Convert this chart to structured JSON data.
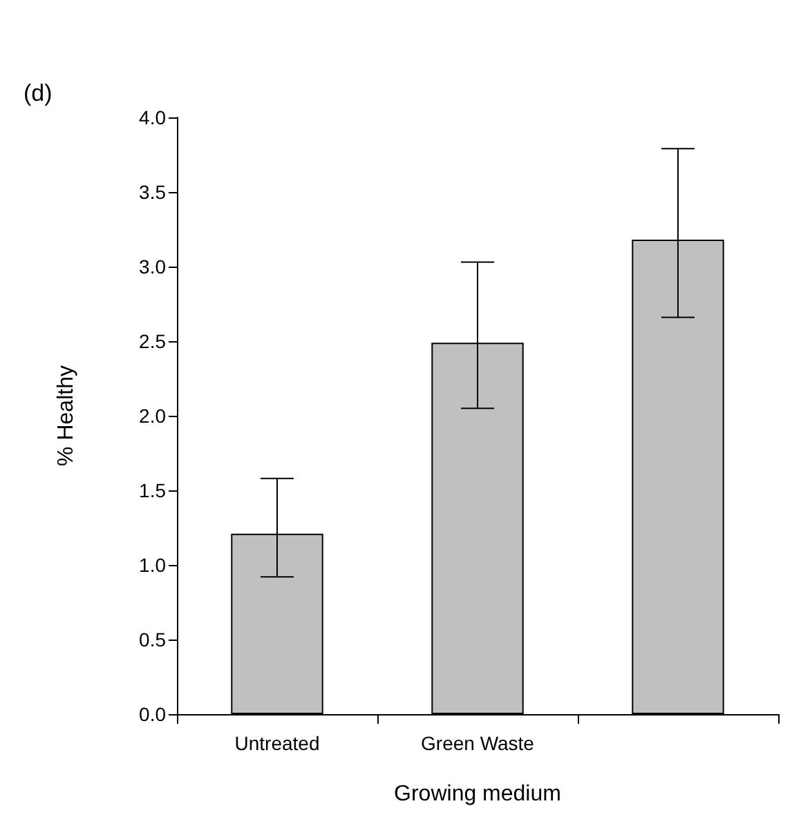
{
  "chart_data": {
    "type": "bar",
    "title": "(d)",
    "xlabel": "Growing medium",
    "ylabel": "% Healthy",
    "categories": [
      "Untreated",
      "Green Waste",
      null
    ],
    "values": [
      1.21,
      2.49,
      3.18
    ],
    "color": "#c0c0c0",
    "errors": [
      [
        0.92,
        1.58
      ],
      [
        2.05,
        3.03
      ],
      [
        2.66,
        3.79
      ]
    ],
    "ylim": [
      0,
      4
    ],
    "yticks": [
      {
        "value": 0,
        "label": "0.0"
      },
      {
        "value": 0.5,
        "label": "0.5"
      },
      {
        "value": 1,
        "label": "1.0"
      },
      {
        "value": 1.5,
        "label": "1.5"
      },
      {
        "value": 2,
        "label": "2.0"
      },
      {
        "value": 2.5,
        "label": "2.5"
      },
      {
        "value": 3,
        "label": "3.0"
      },
      {
        "value": 3.5,
        "label": "3.5"
      },
      {
        "value": 4,
        "label": "4.0"
      }
    ],
    "grid": false
  }
}
